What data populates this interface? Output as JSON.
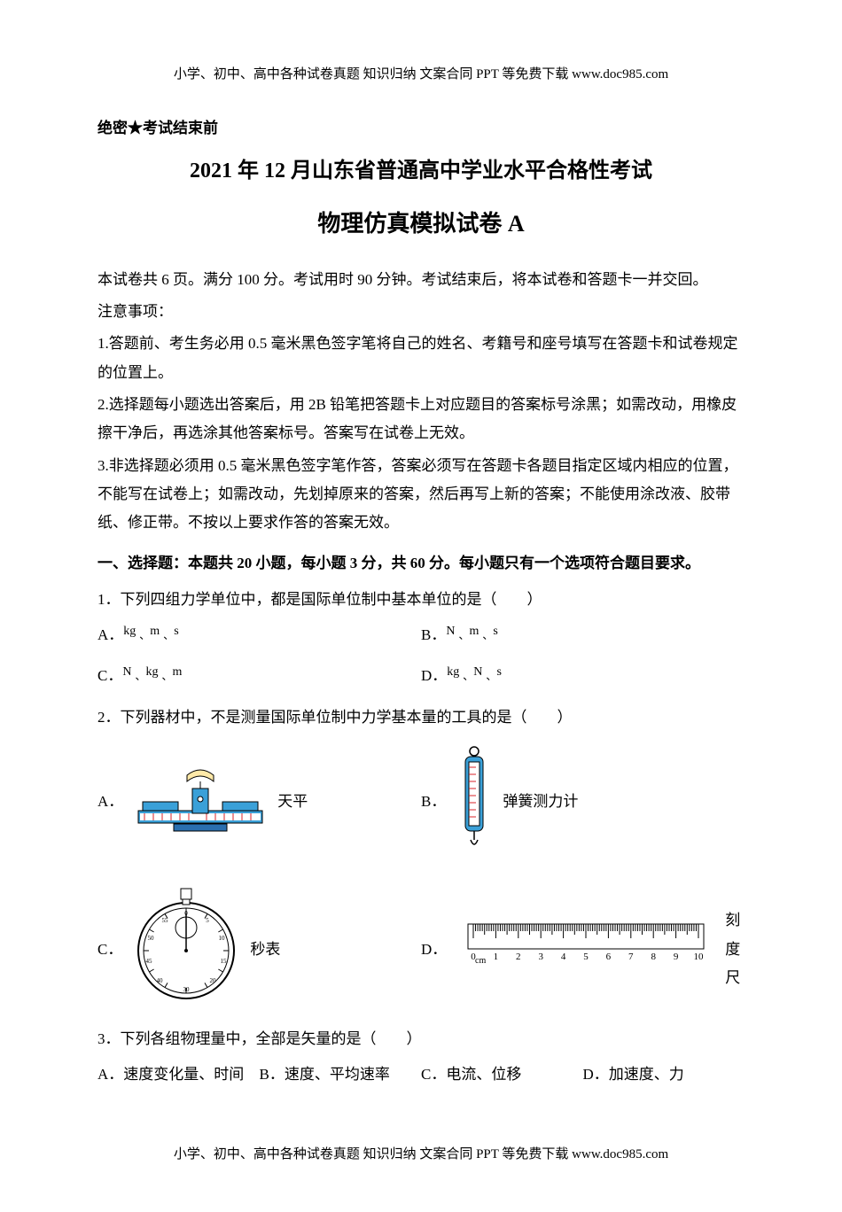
{
  "header": "小学、初中、高中各种试卷真题 知识归纳 文案合同 PPT 等免费下载   www.doc985.com",
  "footer": "小学、初中、高中各种试卷真题 知识归纳 文案合同 PPT 等免费下载   www.doc985.com",
  "confidential": "绝密★考试结束前",
  "title1": "2021 年 12 月山东省普通高中学业水平合格性考试",
  "title2": "物理仿真模拟试卷 A",
  "intro": "本试卷共 6 页。满分 100 分。考试用时 90 分钟。考试结束后，将本试卷和答题卡一并交回。",
  "notice_label": "注意事项：",
  "notices": [
    "1.答题前、考生务必用 0.5 毫米黑色签字笔将自己的姓名、考籍号和座号填写在答题卡和试卷规定的位置上。",
    "2.选择题每小题选出答案后，用 2B 铅笔把答题卡上对应题目的答案标号涂黑；如需改动，用橡皮擦干净后，再选涂其他答案标号。答案写在试卷上无效。",
    "3.非选择题必须用 0.5 毫米黑色签字笔作答，答案必须写在答题卡各题目指定区域内相应的位置，不能写在试卷上；如需改动，先划掉原来的答案，然后再写上新的答案；不能使用涂改液、胶带纸、修正带。不按以上要求作答的答案无效。"
  ],
  "section1": "一、选择题：本题共 20 小题，每小题 3 分，共 60 分。每小题只有一个选项符合题目要求。",
  "q1": {
    "stem": "1．下列四组力学单位中，都是国际单位制中基本单位的是（　　）",
    "A": {
      "label": "A．",
      "u1": "kg",
      "u2": "m",
      "u3": "s"
    },
    "B": {
      "label": "B．",
      "u1": "N",
      "u2": "m",
      "u3": "s"
    },
    "C": {
      "label": "C．",
      "u1": "N",
      "u2": "kg",
      "u3": "m"
    },
    "D": {
      "label": "D．",
      "u1": "kg",
      "u2": "N",
      "u3": "s"
    }
  },
  "q2": {
    "stem": "2．下列器材中，不是测量国际单位制中力学基本量的工具的是（　　）",
    "A_label": "A．",
    "A_name": "天平",
    "B_label": "B．",
    "B_name": "弹簧测力计",
    "C_label": "C．",
    "C_name": "秒表",
    "D_label": "D．",
    "D_name": "刻度尺",
    "ruler_ticks": [
      "0",
      "1",
      "2",
      "3",
      "4",
      "5",
      "6",
      "7",
      "8",
      "9",
      "10"
    ],
    "ruler_unit": "cm"
  },
  "q3": {
    "stem": "3．下列各组物理量中，全部是矢量的是（　　）",
    "A": "A．速度变化量、时间",
    "B": "B．速度、平均速率",
    "C": "C．电流、位移",
    "D": "D．加速度、力"
  },
  "colors": {
    "text": "#000000",
    "bg": "#ffffff",
    "balance_body": "#3aa0d8",
    "balance_accent": "#d8232a",
    "balance_base": "#2a6fb0",
    "gauge_body": "#3aa0d8",
    "stopwatch_face": "#ffffff",
    "stopwatch_ring": "#000000",
    "ruler_line": "#000000"
  },
  "fonts": {
    "body_pt": 13,
    "title1_pt": 18,
    "title2_pt": 20,
    "header_pt": 11
  }
}
